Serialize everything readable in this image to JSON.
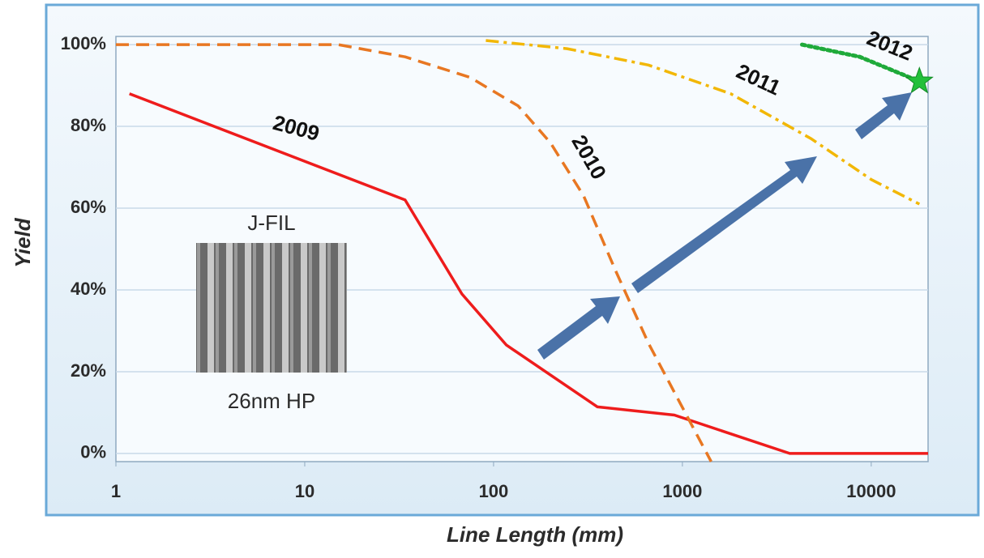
{
  "chart_data": {
    "type": "line",
    "xlabel": "Line Length (mm)",
    "ylabel": "Yield",
    "xscale": "log",
    "xlim": [
      1,
      20000
    ],
    "xticks": [
      1,
      10,
      100,
      1000,
      10000
    ],
    "ylim": [
      -2,
      102
    ],
    "yticks": [
      {
        "value": 0,
        "label": "0%"
      },
      {
        "value": 20,
        "label": "20%"
      },
      {
        "value": 40,
        "label": "40%"
      },
      {
        "value": 60,
        "label": "60%"
      },
      {
        "value": 80,
        "label": "80%"
      },
      {
        "value": 100,
        "label": "100%"
      }
    ],
    "grid": true,
    "series": [
      {
        "name": "2009",
        "color": "#ee1c1c",
        "style": "solid",
        "x": [
          1.18,
          34,
          68,
          117,
          355,
          907,
          3700,
          20000
        ],
        "values": [
          88,
          62,
          39,
          26.5,
          11.4,
          9.4,
          0,
          0
        ]
      },
      {
        "name": "2010",
        "color": "#e87722",
        "style": "dashed",
        "x": [
          1,
          15,
          34,
          75,
          135,
          200,
          300,
          440,
          660,
          980,
          1420
        ],
        "values": [
          100,
          100,
          97,
          92,
          85,
          76,
          63,
          45,
          27,
          12,
          -2
        ]
      },
      {
        "name": "2011",
        "color": "#f2b705",
        "style": "dashdot",
        "x": [
          91,
          245,
          660,
          1800,
          4800,
          10000,
          18000
        ],
        "values": [
          101,
          99,
          95,
          88,
          77,
          67,
          61
        ]
      },
      {
        "name": "2012",
        "color": "#1faa3a",
        "style": "dotted",
        "marker": "star",
        "x": [
          4300,
          8700,
          18000
        ],
        "values": [
          100,
          97,
          91
        ]
      }
    ],
    "annotations": [
      "J-FIL",
      "26nm HP"
    ]
  }
}
